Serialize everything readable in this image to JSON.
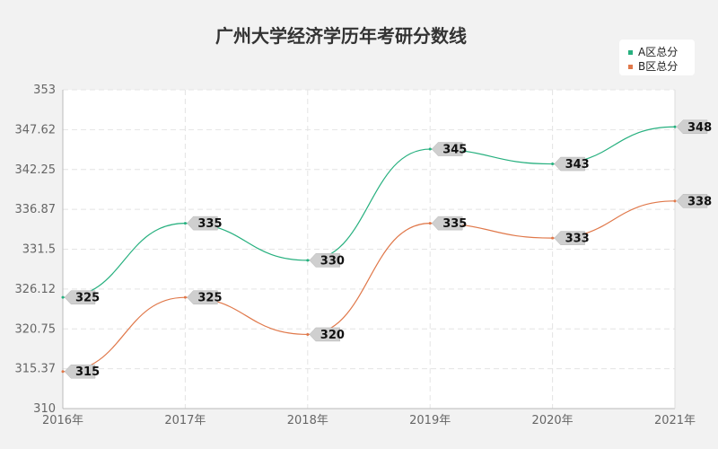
{
  "chart_data": {
    "type": "line",
    "title": "广州大学经济学历年考研分数线",
    "categories": [
      "2016年",
      "2017年",
      "2018年",
      "2019年",
      "2020年",
      "2021年"
    ],
    "series": [
      {
        "name": "A区总分",
        "values": [
          325,
          335,
          330,
          345,
          343,
          348
        ],
        "color": "#27b07f"
      },
      {
        "name": "B区总分",
        "values": [
          315,
          325,
          320,
          335,
          333,
          338
        ],
        "color": "#e0784a"
      }
    ],
    "y_ticks": [
      "310",
      "315.37",
      "320.75",
      "326.12",
      "331.5",
      "336.87",
      "342.25",
      "347.62",
      "353"
    ],
    "ylim": [
      310,
      353
    ],
    "grid": true,
    "legend_position": "top-right"
  }
}
